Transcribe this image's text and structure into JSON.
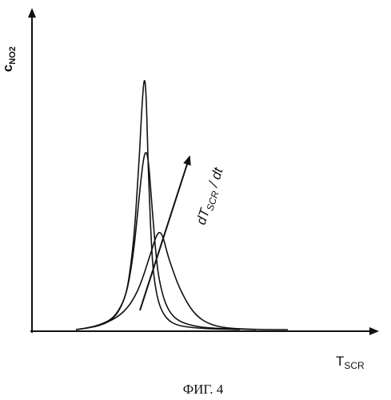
{
  "figure": {
    "caption": "ФИГ. 4"
  },
  "chart_data": {
    "type": "line",
    "title": "",
    "grid": false,
    "legend": "none",
    "axes": {
      "y_label_main": "c",
      "y_label_sub": "NO2",
      "x_label_main": "T",
      "x_label_sub": "SCR"
    },
    "annotation": {
      "arrow_label_main": "dT",
      "arrow_label_sub": "SCR",
      "arrow_label_rest": " / dt",
      "direction": "increasing"
    },
    "series": [
      {
        "x": [
          95,
          110,
          125,
          140,
          150,
          158,
          163,
          168,
          172,
          175,
          177,
          179,
          180,
          181,
          182,
          183,
          184,
          185,
          187,
          189,
          191,
          194,
          198,
          203,
          210,
          220,
          235,
          260,
          300
        ],
        "y": [
          0,
          2,
          5,
          12,
          25,
          45,
          75,
          120,
          180,
          230,
          270,
          300,
          310,
          312,
          305,
          285,
          255,
          215,
          160,
          115,
          80,
          55,
          35,
          22,
          12,
          6,
          3,
          1,
          0
        ]
      },
      {
        "x": [
          95,
          110,
          125,
          140,
          150,
          158,
          163,
          168,
          172,
          176,
          179,
          181,
          183,
          185,
          187,
          189,
          192,
          195,
          198,
          203,
          208,
          215,
          225,
          240,
          260,
          290,
          320
        ],
        "y": [
          0,
          2,
          6,
          13,
          26,
          45,
          70,
          105,
          145,
          185,
          210,
          220,
          222,
          215,
          195,
          168,
          130,
          95,
          68,
          45,
          30,
          18,
          10,
          5,
          2,
          1,
          0
        ]
      },
      {
        "x": [
          95,
          115,
          135,
          150,
          160,
          168,
          175,
          181,
          186,
          190,
          193,
          196,
          199,
          202,
          205,
          208,
          212,
          217,
          222,
          228,
          235,
          242,
          250,
          260,
          272,
          285,
          300,
          330,
          360
        ],
        "y": [
          0,
          3,
          9,
          18,
          28,
          40,
          55,
          72,
          88,
          100,
          110,
          118,
          122,
          120,
          112,
          100,
          86,
          72,
          58,
          45,
          32,
          22,
          14,
          8,
          4,
          2,
          1,
          0,
          0
        ]
      }
    ]
  }
}
